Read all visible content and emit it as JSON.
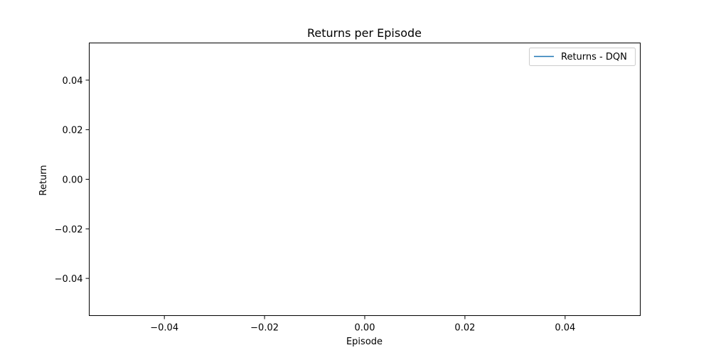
{
  "chart_data": {
    "type": "line",
    "title": "Returns per Episode",
    "xlabel": "Episode",
    "ylabel": "Return",
    "xlim": [
      -0.055,
      0.055
    ],
    "ylim": [
      -0.055,
      0.055
    ],
    "x_ticks": [
      -0.04,
      -0.02,
      0.0,
      0.02,
      0.04
    ],
    "x_tick_labels": [
      "−0.04",
      "−0.02",
      "0.00",
      "0.02",
      "0.04"
    ],
    "y_ticks": [
      0.04,
      0.02,
      0.0,
      -0.02,
      -0.04
    ],
    "y_tick_labels": [
      "0.04",
      "0.02",
      "0.00",
      "−0.02",
      "−0.04"
    ],
    "grid": false,
    "legend_position": "top-right",
    "series": [
      {
        "name": "Returns - DQN",
        "color": "#1f77b4",
        "x": [],
        "y": []
      }
    ]
  }
}
